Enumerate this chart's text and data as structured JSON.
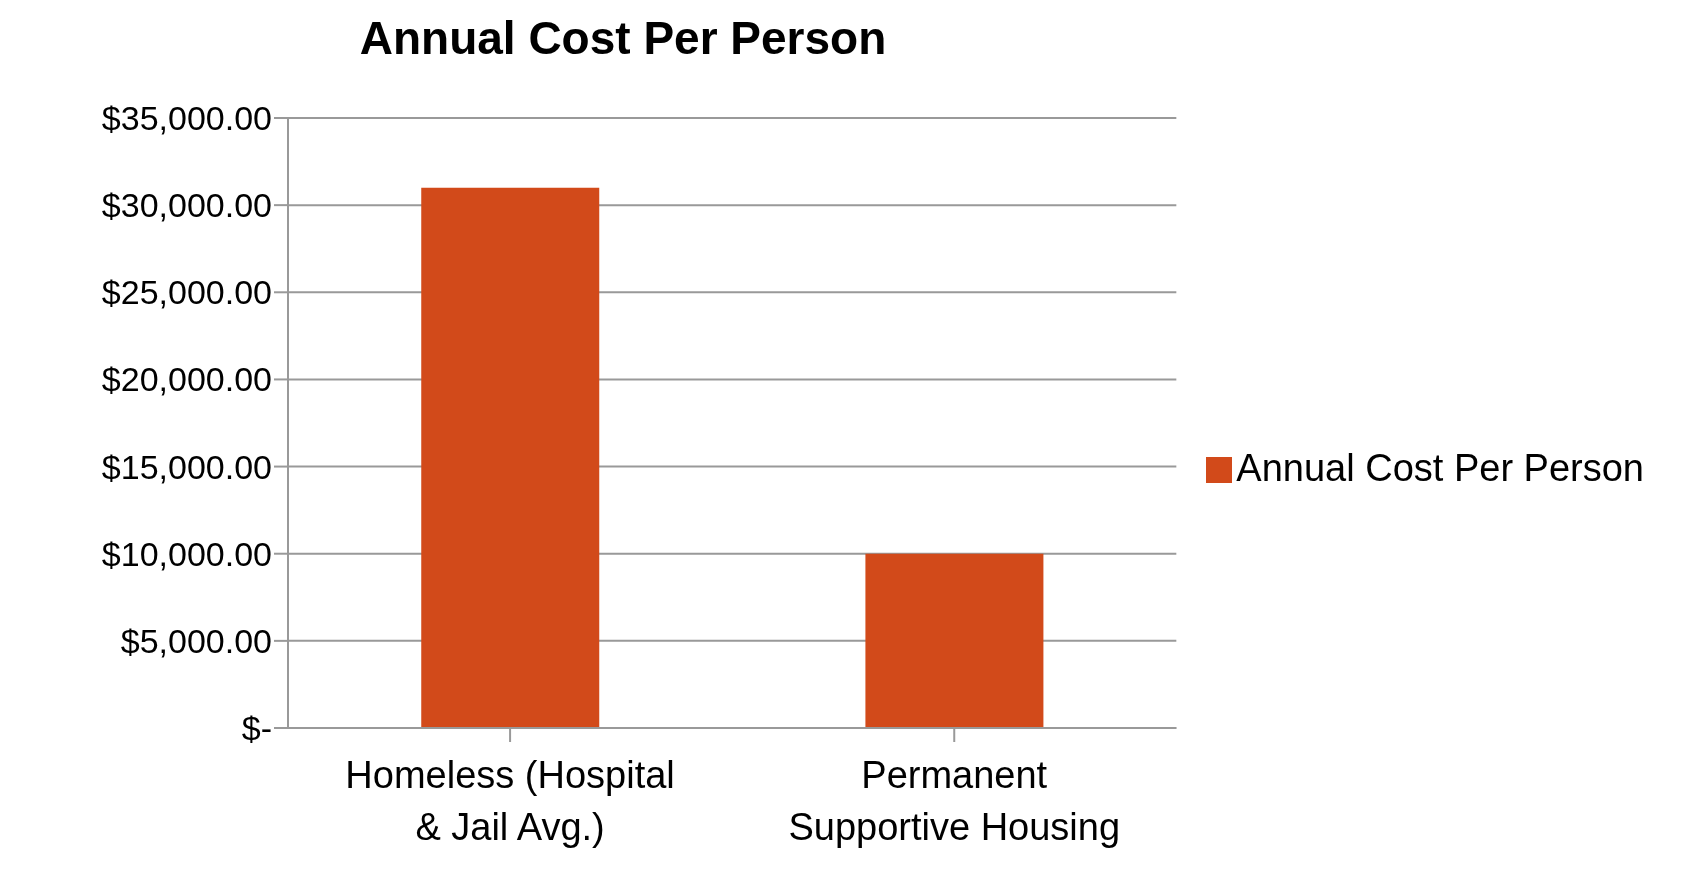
{
  "chart_data": {
    "type": "bar",
    "title": "Annual Cost Per Person",
    "categories": [
      "Homeless (Hospital & Jail Avg.)",
      "Permanent Supportive Housing"
    ],
    "series": [
      {
        "name": "Annual Cost Per Person",
        "color": "#d24a1a",
        "values": [
          31000,
          10000
        ]
      }
    ],
    "ylim": [
      0,
      35000
    ],
    "yticks": [
      {
        "value": 0,
        "label": "$-"
      },
      {
        "value": 5000,
        "label": "$5,000.00"
      },
      {
        "value": 10000,
        "label": "$10,000.00"
      },
      {
        "value": 15000,
        "label": "$15,000.00"
      },
      {
        "value": 20000,
        "label": "$20,000.00"
      },
      {
        "value": 25000,
        "label": "$25,000.00"
      },
      {
        "value": 30000,
        "label": "$30,000.00"
      },
      {
        "value": 35000,
        "label": "$35,000.00"
      }
    ],
    "grid": "y",
    "legend": "right"
  }
}
